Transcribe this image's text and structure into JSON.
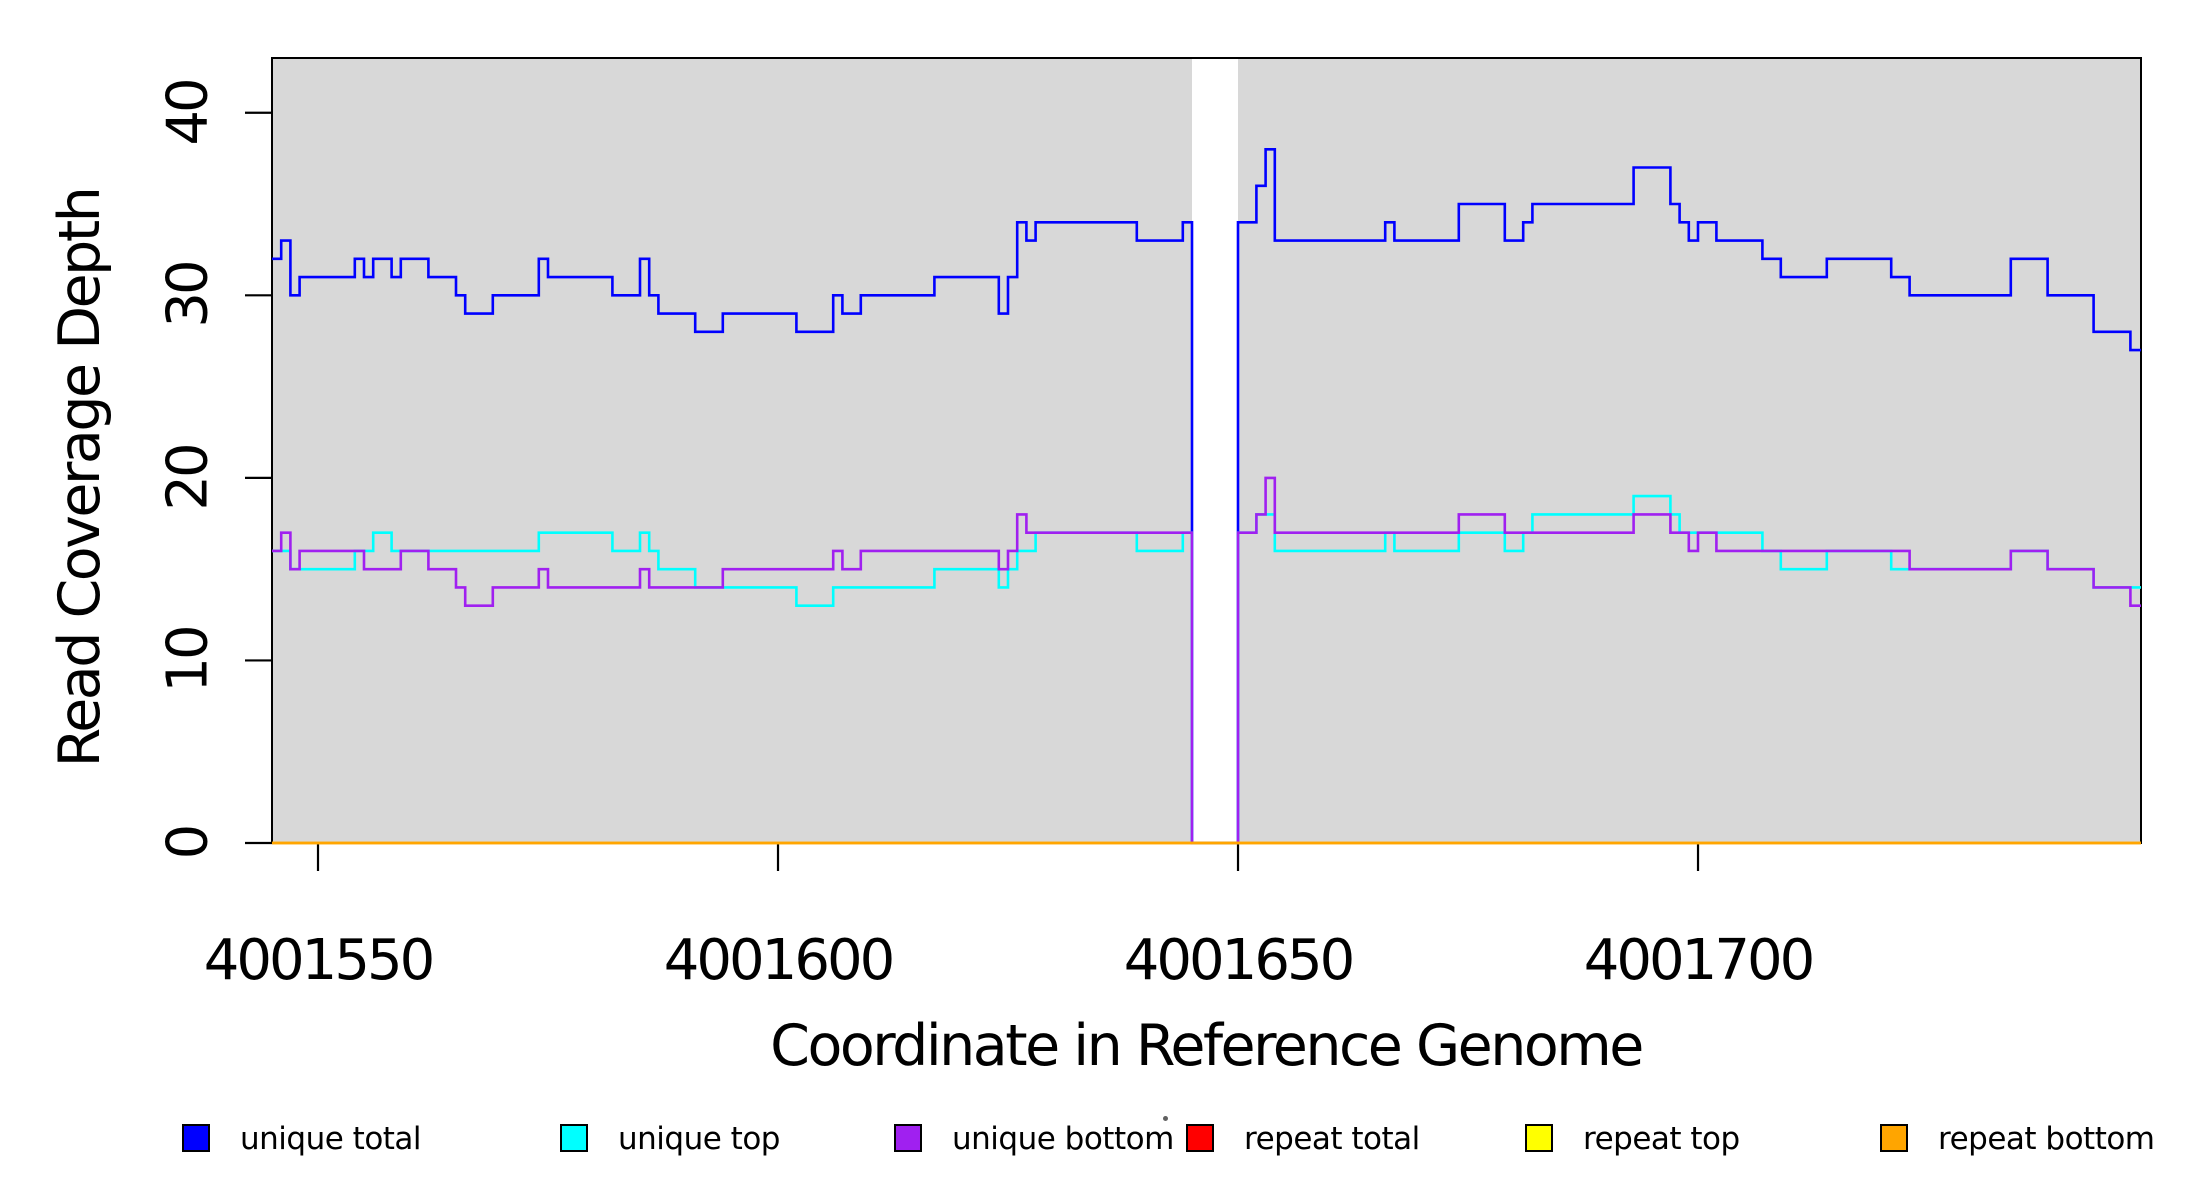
{
  "chart_data": {
    "type": "step-line",
    "title": "",
    "x_axis": {
      "label": "Coordinate in Reference Genome",
      "range": [
        4001545,
        4001748.15
      ],
      "ticks": [
        {
          "value": 4001550,
          "label": "4001550"
        },
        {
          "value": 4001600,
          "label": "4001600"
        },
        {
          "value": 4001650,
          "label": "4001650"
        },
        {
          "value": 4001700,
          "label": "4001700"
        }
      ]
    },
    "y_axis": {
      "label": "Read Coverage Depth",
      "range": [
        0,
        43
      ],
      "ticks": [
        {
          "value": 0,
          "label": "0"
        },
        {
          "value": 10,
          "label": "10"
        },
        {
          "value": 20,
          "label": "20"
        },
        {
          "value": 30,
          "label": "30"
        },
        {
          "value": 40,
          "label": "40"
        }
      ]
    },
    "plot_background_color": "#D8D8D8",
    "zero_coverage_gap": {
      "start": 4001645,
      "end": 4001650,
      "color": "#FFFFFF"
    },
    "legend": {
      "items": [
        {
          "label": "unique total",
          "color": "#0000FF"
        },
        {
          "label": "unique top",
          "color": "#00FFFF"
        },
        {
          "label": "unique bottom",
          "color": "#A020F0"
        },
        {
          "label": "repeat total",
          "color": "#FF0000"
        },
        {
          "label": "repeat top",
          "color": "#FFFF00"
        },
        {
          "label": "repeat bottom",
          "color": "#FFA500"
        }
      ]
    },
    "stray_mark": "·",
    "series": [
      {
        "name": "unique total",
        "color": "#0000FF",
        "runs": [
          [
            4001545,
            4001546,
            32
          ],
          [
            4001546,
            4001547,
            33
          ],
          [
            4001547,
            4001548,
            30
          ],
          [
            4001548,
            4001554,
            31
          ],
          [
            4001554,
            4001555,
            32
          ],
          [
            4001555,
            4001556,
            31
          ],
          [
            4001556,
            4001558,
            32
          ],
          [
            4001558,
            4001559,
            31
          ],
          [
            4001559,
            4001562,
            32
          ],
          [
            4001562,
            4001565,
            31
          ],
          [
            4001565,
            4001566,
            30
          ],
          [
            4001566,
            4001569,
            29
          ],
          [
            4001569,
            4001574,
            30
          ],
          [
            4001574,
            4001575,
            32
          ],
          [
            4001575,
            4001582,
            31
          ],
          [
            4001582,
            4001585,
            30
          ],
          [
            4001585,
            4001586,
            32
          ],
          [
            4001586,
            4001587,
            30
          ],
          [
            4001587,
            4001591,
            29
          ],
          [
            4001591,
            4001594,
            28
          ],
          [
            4001594,
            4001602,
            29
          ],
          [
            4001602,
            4001606,
            28
          ],
          [
            4001606,
            4001607,
            30
          ],
          [
            4001607,
            4001609,
            29
          ],
          [
            4001609,
            4001617,
            30
          ],
          [
            4001617,
            4001624,
            31
          ],
          [
            4001624,
            4001625,
            29
          ],
          [
            4001625,
            4001626,
            31
          ],
          [
            4001626,
            4001627,
            34
          ],
          [
            4001627,
            4001628,
            33
          ],
          [
            4001628,
            4001639,
            34
          ],
          [
            4001639,
            4001644,
            33
          ],
          [
            4001644,
            4001645,
            34
          ],
          [
            4001645,
            4001650,
            0
          ],
          [
            4001650,
            4001652,
            34
          ],
          [
            4001652,
            4001653,
            36
          ],
          [
            4001653,
            4001654,
            38
          ],
          [
            4001654,
            4001666,
            33
          ],
          [
            4001666,
            4001667,
            34
          ],
          [
            4001667,
            4001674,
            33
          ],
          [
            4001674,
            4001679,
            35
          ],
          [
            4001679,
            4001681,
            33
          ],
          [
            4001681,
            4001682,
            34
          ],
          [
            4001682,
            4001693,
            35
          ],
          [
            4001693,
            4001697,
            37
          ],
          [
            4001697,
            4001698,
            35
          ],
          [
            4001698,
            4001699,
            34
          ],
          [
            4001699,
            4001700,
            33
          ],
          [
            4001700,
            4001702,
            34
          ],
          [
            4001702,
            4001707,
            33
          ],
          [
            4001707,
            4001709,
            32
          ],
          [
            4001709,
            4001714,
            31
          ],
          [
            4001714,
            4001721,
            32
          ],
          [
            4001721,
            4001723,
            31
          ],
          [
            4001723,
            4001734,
            30
          ],
          [
            4001734,
            4001738,
            32
          ],
          [
            4001738,
            4001743,
            30
          ],
          [
            4001743,
            4001747,
            28
          ],
          [
            4001747,
            4001749,
            27
          ]
        ]
      },
      {
        "name": "unique top",
        "color": "#00FFFF",
        "runs": [
          [
            4001545,
            4001547,
            16
          ],
          [
            4001547,
            4001554,
            15
          ],
          [
            4001554,
            4001556,
            16
          ],
          [
            4001556,
            4001558,
            17
          ],
          [
            4001558,
            4001574,
            16
          ],
          [
            4001574,
            4001582,
            17
          ],
          [
            4001582,
            4001585,
            16
          ],
          [
            4001585,
            4001586,
            17
          ],
          [
            4001586,
            4001587,
            16
          ],
          [
            4001587,
            4001591,
            15
          ],
          [
            4001591,
            4001602,
            14
          ],
          [
            4001602,
            4001606,
            13
          ],
          [
            4001606,
            4001617,
            14
          ],
          [
            4001617,
            4001624,
            15
          ],
          [
            4001624,
            4001625,
            14
          ],
          [
            4001625,
            4001626,
            15
          ],
          [
            4001626,
            4001628,
            16
          ],
          [
            4001628,
            4001639,
            17
          ],
          [
            4001639,
            4001644,
            16
          ],
          [
            4001644,
            4001645,
            17
          ],
          [
            4001645,
            4001650,
            0
          ],
          [
            4001650,
            4001652,
            17
          ],
          [
            4001652,
            4001654,
            18
          ],
          [
            4001654,
            4001666,
            16
          ],
          [
            4001666,
            4001667,
            17
          ],
          [
            4001667,
            4001674,
            16
          ],
          [
            4001674,
            4001679,
            17
          ],
          [
            4001679,
            4001681,
            16
          ],
          [
            4001681,
            4001682,
            17
          ],
          [
            4001682,
            4001693,
            18
          ],
          [
            4001693,
            4001697,
            19
          ],
          [
            4001697,
            4001698,
            18
          ],
          [
            4001698,
            4001707,
            17
          ],
          [
            4001707,
            4001709,
            16
          ],
          [
            4001709,
            4001714,
            15
          ],
          [
            4001714,
            4001721,
            16
          ],
          [
            4001721,
            4001734,
            15
          ],
          [
            4001734,
            4001738,
            16
          ],
          [
            4001738,
            4001743,
            15
          ],
          [
            4001743,
            4001749,
            14
          ]
        ]
      },
      {
        "name": "unique bottom",
        "color": "#A020F0",
        "runs": [
          [
            4001545,
            4001546,
            16
          ],
          [
            4001546,
            4001547,
            17
          ],
          [
            4001547,
            4001548,
            15
          ],
          [
            4001548,
            4001555,
            16
          ],
          [
            4001555,
            4001559,
            15
          ],
          [
            4001559,
            4001562,
            16
          ],
          [
            4001562,
            4001565,
            15
          ],
          [
            4001565,
            4001566,
            14
          ],
          [
            4001566,
            4001569,
            13
          ],
          [
            4001569,
            4001574,
            14
          ],
          [
            4001574,
            4001575,
            15
          ],
          [
            4001575,
            4001585,
            14
          ],
          [
            4001585,
            4001586,
            15
          ],
          [
            4001586,
            4001594,
            14
          ],
          [
            4001594,
            4001606,
            15
          ],
          [
            4001606,
            4001607,
            16
          ],
          [
            4001607,
            4001609,
            15
          ],
          [
            4001609,
            4001624,
            16
          ],
          [
            4001624,
            4001625,
            15
          ],
          [
            4001625,
            4001626,
            16
          ],
          [
            4001626,
            4001627,
            18
          ],
          [
            4001627,
            4001645,
            17
          ],
          [
            4001645,
            4001650,
            0
          ],
          [
            4001650,
            4001652,
            17
          ],
          [
            4001652,
            4001653,
            18
          ],
          [
            4001653,
            4001654,
            20
          ],
          [
            4001654,
            4001674,
            17
          ],
          [
            4001674,
            4001679,
            18
          ],
          [
            4001679,
            4001693,
            17
          ],
          [
            4001693,
            4001697,
            18
          ],
          [
            4001697,
            4001699,
            17
          ],
          [
            4001699,
            4001700,
            16
          ],
          [
            4001700,
            4001702,
            17
          ],
          [
            4001702,
            4001723,
            16
          ],
          [
            4001723,
            4001734,
            15
          ],
          [
            4001734,
            4001738,
            16
          ],
          [
            4001738,
            4001743,
            15
          ],
          [
            4001743,
            4001747,
            14
          ],
          [
            4001747,
            4001749,
            13
          ]
        ]
      },
      {
        "name": "repeat total",
        "color": "#FF0000",
        "runs": [
          [
            4001545,
            4001749,
            0
          ]
        ]
      },
      {
        "name": "repeat top",
        "color": "#FFFF00",
        "runs": [
          [
            4001545,
            4001749,
            0
          ]
        ]
      },
      {
        "name": "repeat bottom",
        "color": "#FFA500",
        "runs": [
          [
            4001545,
            4001749,
            0
          ]
        ]
      }
    ]
  }
}
